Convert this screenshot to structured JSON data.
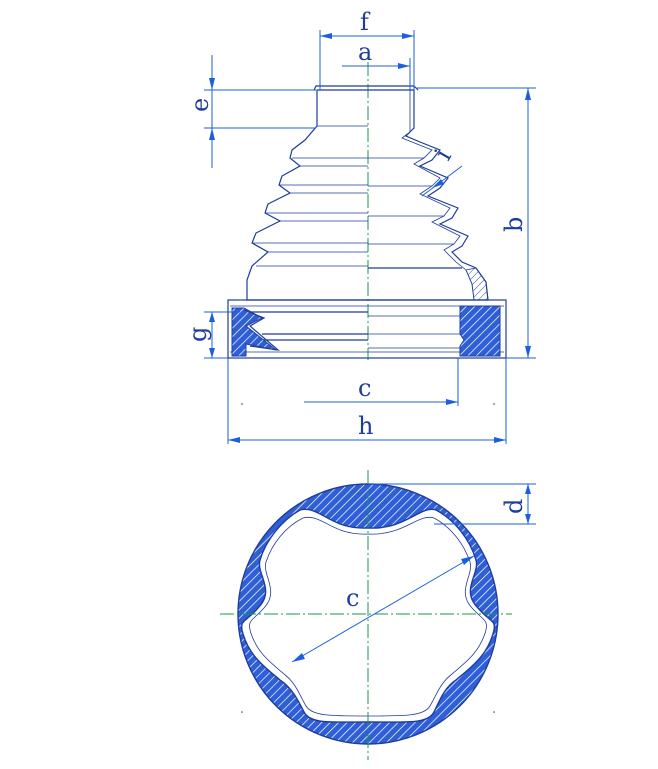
{
  "labels": {
    "f": "f",
    "a": "a",
    "e": "e",
    "i": "i",
    "b": "b",
    "g": "g",
    "c_side": "c",
    "h": "h",
    "d": "d",
    "c_plan": "c"
  },
  "colors": {
    "outline": "#1e3c9c",
    "dimension": "#1b5fe0",
    "centerline": "#1a9a4a",
    "hatch": "#2f5fd6",
    "text": "#1e3c9c"
  }
}
